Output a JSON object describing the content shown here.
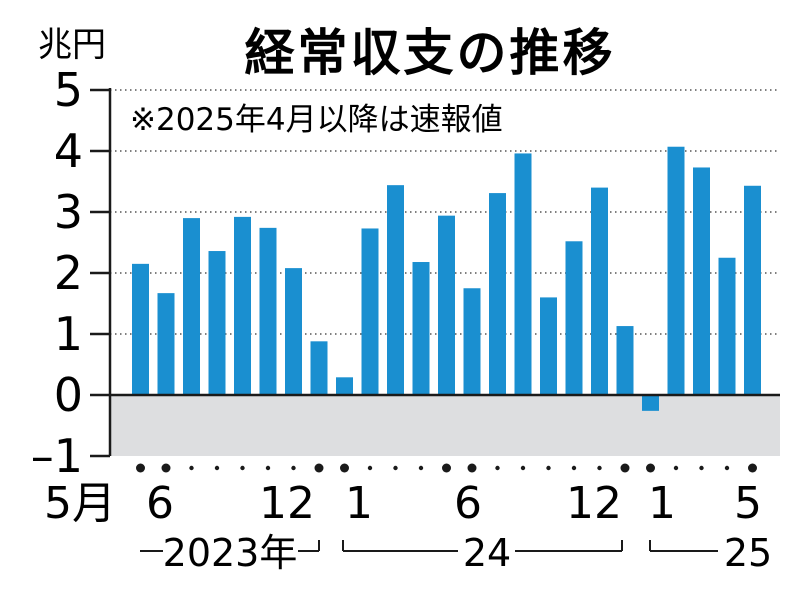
{
  "chart_data": {
    "type": "bar",
    "title": "経常収支の推移",
    "unit": "兆円",
    "note": "※2025年4月以降は速報値",
    "ylim": [
      -1,
      5
    ],
    "yticks": [
      "5",
      "4",
      "3",
      "2",
      "1",
      "0",
      "–1"
    ],
    "grid": true,
    "categories": [
      "2023-05",
      "2023-06",
      "2023-07",
      "2023-08",
      "2023-09",
      "2023-10",
      "2023-11",
      "2023-12",
      "2024-01",
      "2024-02",
      "2024-03",
      "2024-04",
      "2024-05",
      "2024-06",
      "2024-07",
      "2024-08",
      "2024-09",
      "2024-10",
      "2024-11",
      "2024-12",
      "2025-01",
      "2025-02",
      "2025-03",
      "2025-04",
      "2025-05"
    ],
    "values": [
      2.15,
      1.67,
      2.9,
      2.36,
      2.92,
      2.74,
      2.08,
      0.88,
      0.29,
      2.73,
      3.44,
      2.18,
      2.94,
      1.75,
      3.31,
      3.96,
      1.6,
      2.52,
      3.4,
      1.13,
      -0.26,
      4.07,
      3.73,
      2.25,
      3.43
    ],
    "color": "#1a8fd0",
    "negative_band_color": "#dddee0",
    "xlabels": [
      "5月",
      "6",
      "12",
      "1",
      "6",
      "12",
      "1",
      "5"
    ],
    "years": [
      "2023年",
      "24",
      "25"
    ]
  }
}
